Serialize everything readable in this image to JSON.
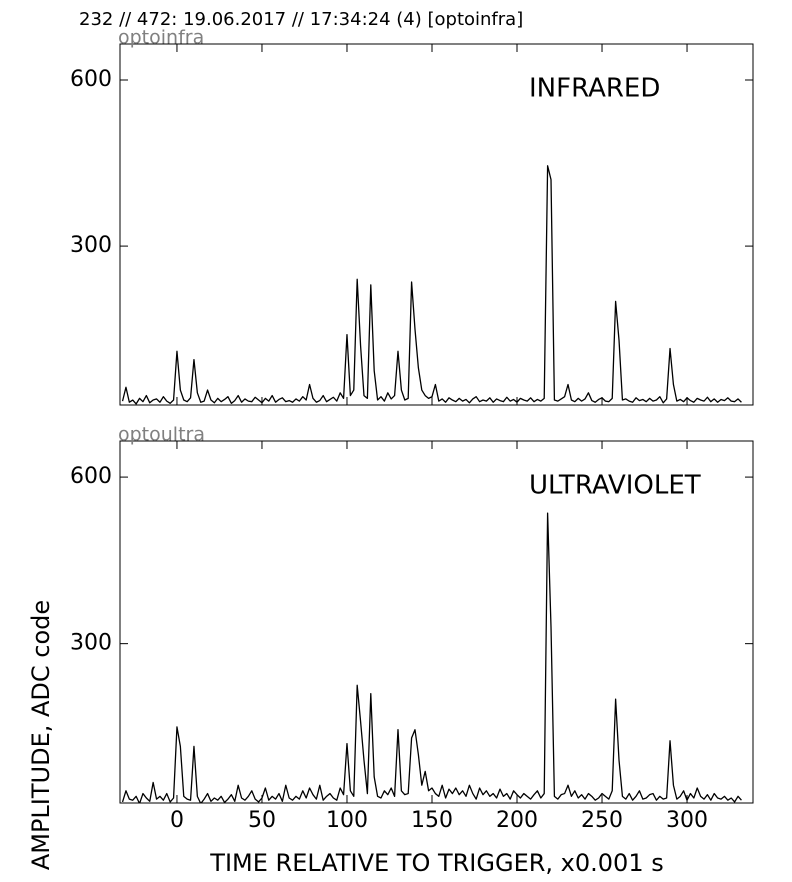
{
  "header": "232 // 472:   19.06.2017 // 17:34:24 (4)  [optoinfra]",
  "ylabel": "AMPLITUDE,  ADC code",
  "xlabel": "TIME RELATIVE TO TRIGGER,   x0.001 s",
  "chart_data": [
    {
      "type": "line",
      "title": "INFRARED",
      "subtitle": "optoinfra",
      "xlim": [
        -33.5,
        338.8
      ],
      "xticks": [
        0,
        50,
        100,
        150,
        200,
        250,
        300
      ],
      "ylim": [
        13,
        665
      ],
      "yticks": [
        300,
        600
      ],
      "series": [
        {
          "name": "optoinfra",
          "color": "#000000",
          "x": [
            -32,
            -30,
            -28,
            -26,
            -24,
            -22,
            -20,
            -18,
            -16,
            -14,
            -12,
            -10,
            -8,
            -6,
            -4,
            -2,
            0,
            2,
            4,
            6,
            8,
            10,
            12,
            14,
            16,
            18,
            20,
            22,
            24,
            26,
            28,
            30,
            32,
            34,
            36,
            38,
            40,
            42,
            44,
            46,
            48,
            50,
            52,
            54,
            56,
            58,
            60,
            62,
            64,
            66,
            68,
            70,
            72,
            74,
            76,
            78,
            80,
            82,
            84,
            86,
            88,
            90,
            92,
            94,
            96,
            98,
            100,
            102,
            104,
            106,
            108,
            110,
            112,
            114,
            116,
            118,
            120,
            122,
            124,
            126,
            128,
            130,
            132,
            134,
            136,
            138,
            140,
            142,
            144,
            146,
            148,
            150,
            152,
            154,
            156,
            158,
            160,
            162,
            164,
            166,
            168,
            170,
            172,
            174,
            176,
            178,
            180,
            182,
            184,
            186,
            188,
            190,
            192,
            194,
            196,
            198,
            200,
            202,
            204,
            206,
            208,
            210,
            212,
            214,
            216,
            218,
            220,
            222,
            224,
            226,
            228,
            230,
            232,
            234,
            236,
            238,
            240,
            242,
            244,
            246,
            248,
            250,
            252,
            254,
            256,
            258,
            260,
            262,
            264,
            266,
            268,
            270,
            272,
            274,
            276,
            278,
            280,
            282,
            284,
            286,
            288,
            290,
            292,
            294,
            296,
            298,
            300,
            302,
            304,
            306,
            308,
            310,
            312,
            314,
            316,
            318,
            320,
            322,
            324,
            326,
            328,
            330,
            332
          ],
          "values": [
            20,
            45,
            18,
            22,
            15,
            25,
            19,
            30,
            17,
            22,
            24,
            18,
            28,
            20,
            16,
            22,
            110,
            40,
            22,
            19,
            26,
            95,
            35,
            18,
            20,
            40,
            22,
            17,
            25,
            19,
            23,
            28,
            16,
            21,
            30,
            18,
            24,
            20,
            19,
            27,
            22,
            17,
            25,
            20,
            30,
            18,
            23,
            26,
            19,
            21,
            18,
            24,
            20,
            28,
            22,
            50,
            25,
            18,
            21,
            30,
            19,
            23,
            27,
            20,
            35,
            25,
            140,
            30,
            40,
            240,
            120,
            30,
            25,
            230,
            75,
            22,
            28,
            20,
            35,
            24,
            30,
            110,
            40,
            22,
            25,
            235,
            150,
            80,
            40,
            30,
            25,
            28,
            50,
            20,
            24,
            18,
            26,
            22,
            19,
            25,
            20,
            23,
            17,
            24,
            28,
            19,
            22,
            20,
            26,
            18,
            24,
            21,
            19,
            27,
            20,
            23,
            18,
            25,
            22,
            20,
            26,
            19,
            23,
            20,
            25,
            445,
            420,
            22,
            20,
            24,
            28,
            50,
            22,
            19,
            25,
            20,
            24,
            35,
            21,
            18,
            23,
            26,
            20,
            19,
            25,
            200,
            130,
            22,
            24,
            20,
            18,
            26,
            21,
            23,
            19,
            25,
            20,
            22,
            28,
            17,
            24,
            115,
            50,
            20,
            23,
            19,
            26,
            21,
            18,
            25,
            22,
            20,
            27,
            19,
            24,
            18,
            23,
            21,
            26,
            20,
            19,
            24,
            18
          ]
        }
      ]
    },
    {
      "type": "line",
      "title": "ULTRAVIOLET",
      "subtitle": "optoultra",
      "xlim": [
        -33.5,
        338.8
      ],
      "xticks": [
        0,
        50,
        100,
        150,
        200,
        250,
        300
      ],
      "ylim": [
        13,
        665
      ],
      "yticks": [
        300,
        600
      ],
      "series": [
        {
          "name": "optoultra",
          "color": "#000000",
          "x": [
            -32,
            -30,
            -28,
            -26,
            -24,
            -22,
            -20,
            -18,
            -16,
            -14,
            -12,
            -10,
            -8,
            -6,
            -4,
            -2,
            0,
            2,
            4,
            6,
            8,
            10,
            12,
            14,
            16,
            18,
            20,
            22,
            24,
            26,
            28,
            30,
            32,
            34,
            36,
            38,
            40,
            42,
            44,
            46,
            48,
            50,
            52,
            54,
            56,
            58,
            60,
            62,
            64,
            66,
            68,
            70,
            72,
            74,
            76,
            78,
            80,
            82,
            84,
            86,
            88,
            90,
            92,
            94,
            96,
            98,
            100,
            102,
            104,
            106,
            108,
            110,
            112,
            114,
            116,
            118,
            120,
            122,
            124,
            126,
            128,
            130,
            132,
            134,
            136,
            138,
            140,
            142,
            144,
            146,
            148,
            150,
            152,
            154,
            156,
            158,
            160,
            162,
            164,
            166,
            168,
            170,
            172,
            174,
            176,
            178,
            180,
            182,
            184,
            186,
            188,
            190,
            192,
            194,
            196,
            198,
            200,
            202,
            204,
            206,
            208,
            210,
            212,
            214,
            216,
            218,
            220,
            222,
            224,
            226,
            228,
            230,
            232,
            234,
            236,
            238,
            240,
            242,
            244,
            246,
            248,
            250,
            252,
            254,
            256,
            258,
            260,
            262,
            264,
            266,
            268,
            270,
            272,
            274,
            276,
            278,
            280,
            282,
            284,
            286,
            288,
            290,
            292,
            294,
            296,
            298,
            300,
            302,
            304,
            306,
            308,
            310,
            312,
            314,
            316,
            318,
            320,
            322,
            324,
            326,
            328,
            330,
            332
          ],
          "values": [
            15,
            35,
            20,
            18,
            25,
            12,
            30,
            22,
            16,
            50,
            20,
            25,
            18,
            30,
            15,
            22,
            150,
            115,
            25,
            20,
            18,
            115,
            25,
            12,
            20,
            30,
            16,
            22,
            18,
            25,
            14,
            20,
            28,
            16,
            45,
            22,
            18,
            25,
            35,
            20,
            15,
            22,
            40,
            18,
            25,
            20,
            30,
            16,
            45,
            22,
            18,
            25,
            20,
            35,
            22,
            40,
            28,
            20,
            45,
            18,
            25,
            30,
            22,
            18,
            40,
            28,
            120,
            35,
            25,
            225,
            160,
            90,
            30,
            210,
            60,
            25,
            22,
            35,
            28,
            40,
            25,
            145,
            35,
            28,
            30,
            130,
            145,
            100,
            45,
            70,
            35,
            40,
            30,
            25,
            45,
            22,
            38,
            30,
            40,
            28,
            35,
            25,
            45,
            30,
            20,
            40,
            28,
            35,
            25,
            30,
            22,
            38,
            25,
            30,
            20,
            35,
            28,
            22,
            30,
            25,
            20,
            28,
            35,
            22,
            30,
            535,
            330,
            25,
            20,
            28,
            30,
            45,
            25,
            35,
            22,
            28,
            20,
            30,
            25,
            18,
            22,
            30,
            25,
            20,
            35,
            200,
            90,
            25,
            20,
            30,
            18,
            25,
            35,
            20,
            22,
            28,
            30,
            18,
            25,
            20,
            22,
            125,
            45,
            20,
            25,
            35,
            18,
            30,
            22,
            40,
            25,
            20,
            28,
            18,
            30,
            22,
            20,
            25,
            18,
            22,
            15,
            25,
            18
          ]
        }
      ]
    }
  ]
}
